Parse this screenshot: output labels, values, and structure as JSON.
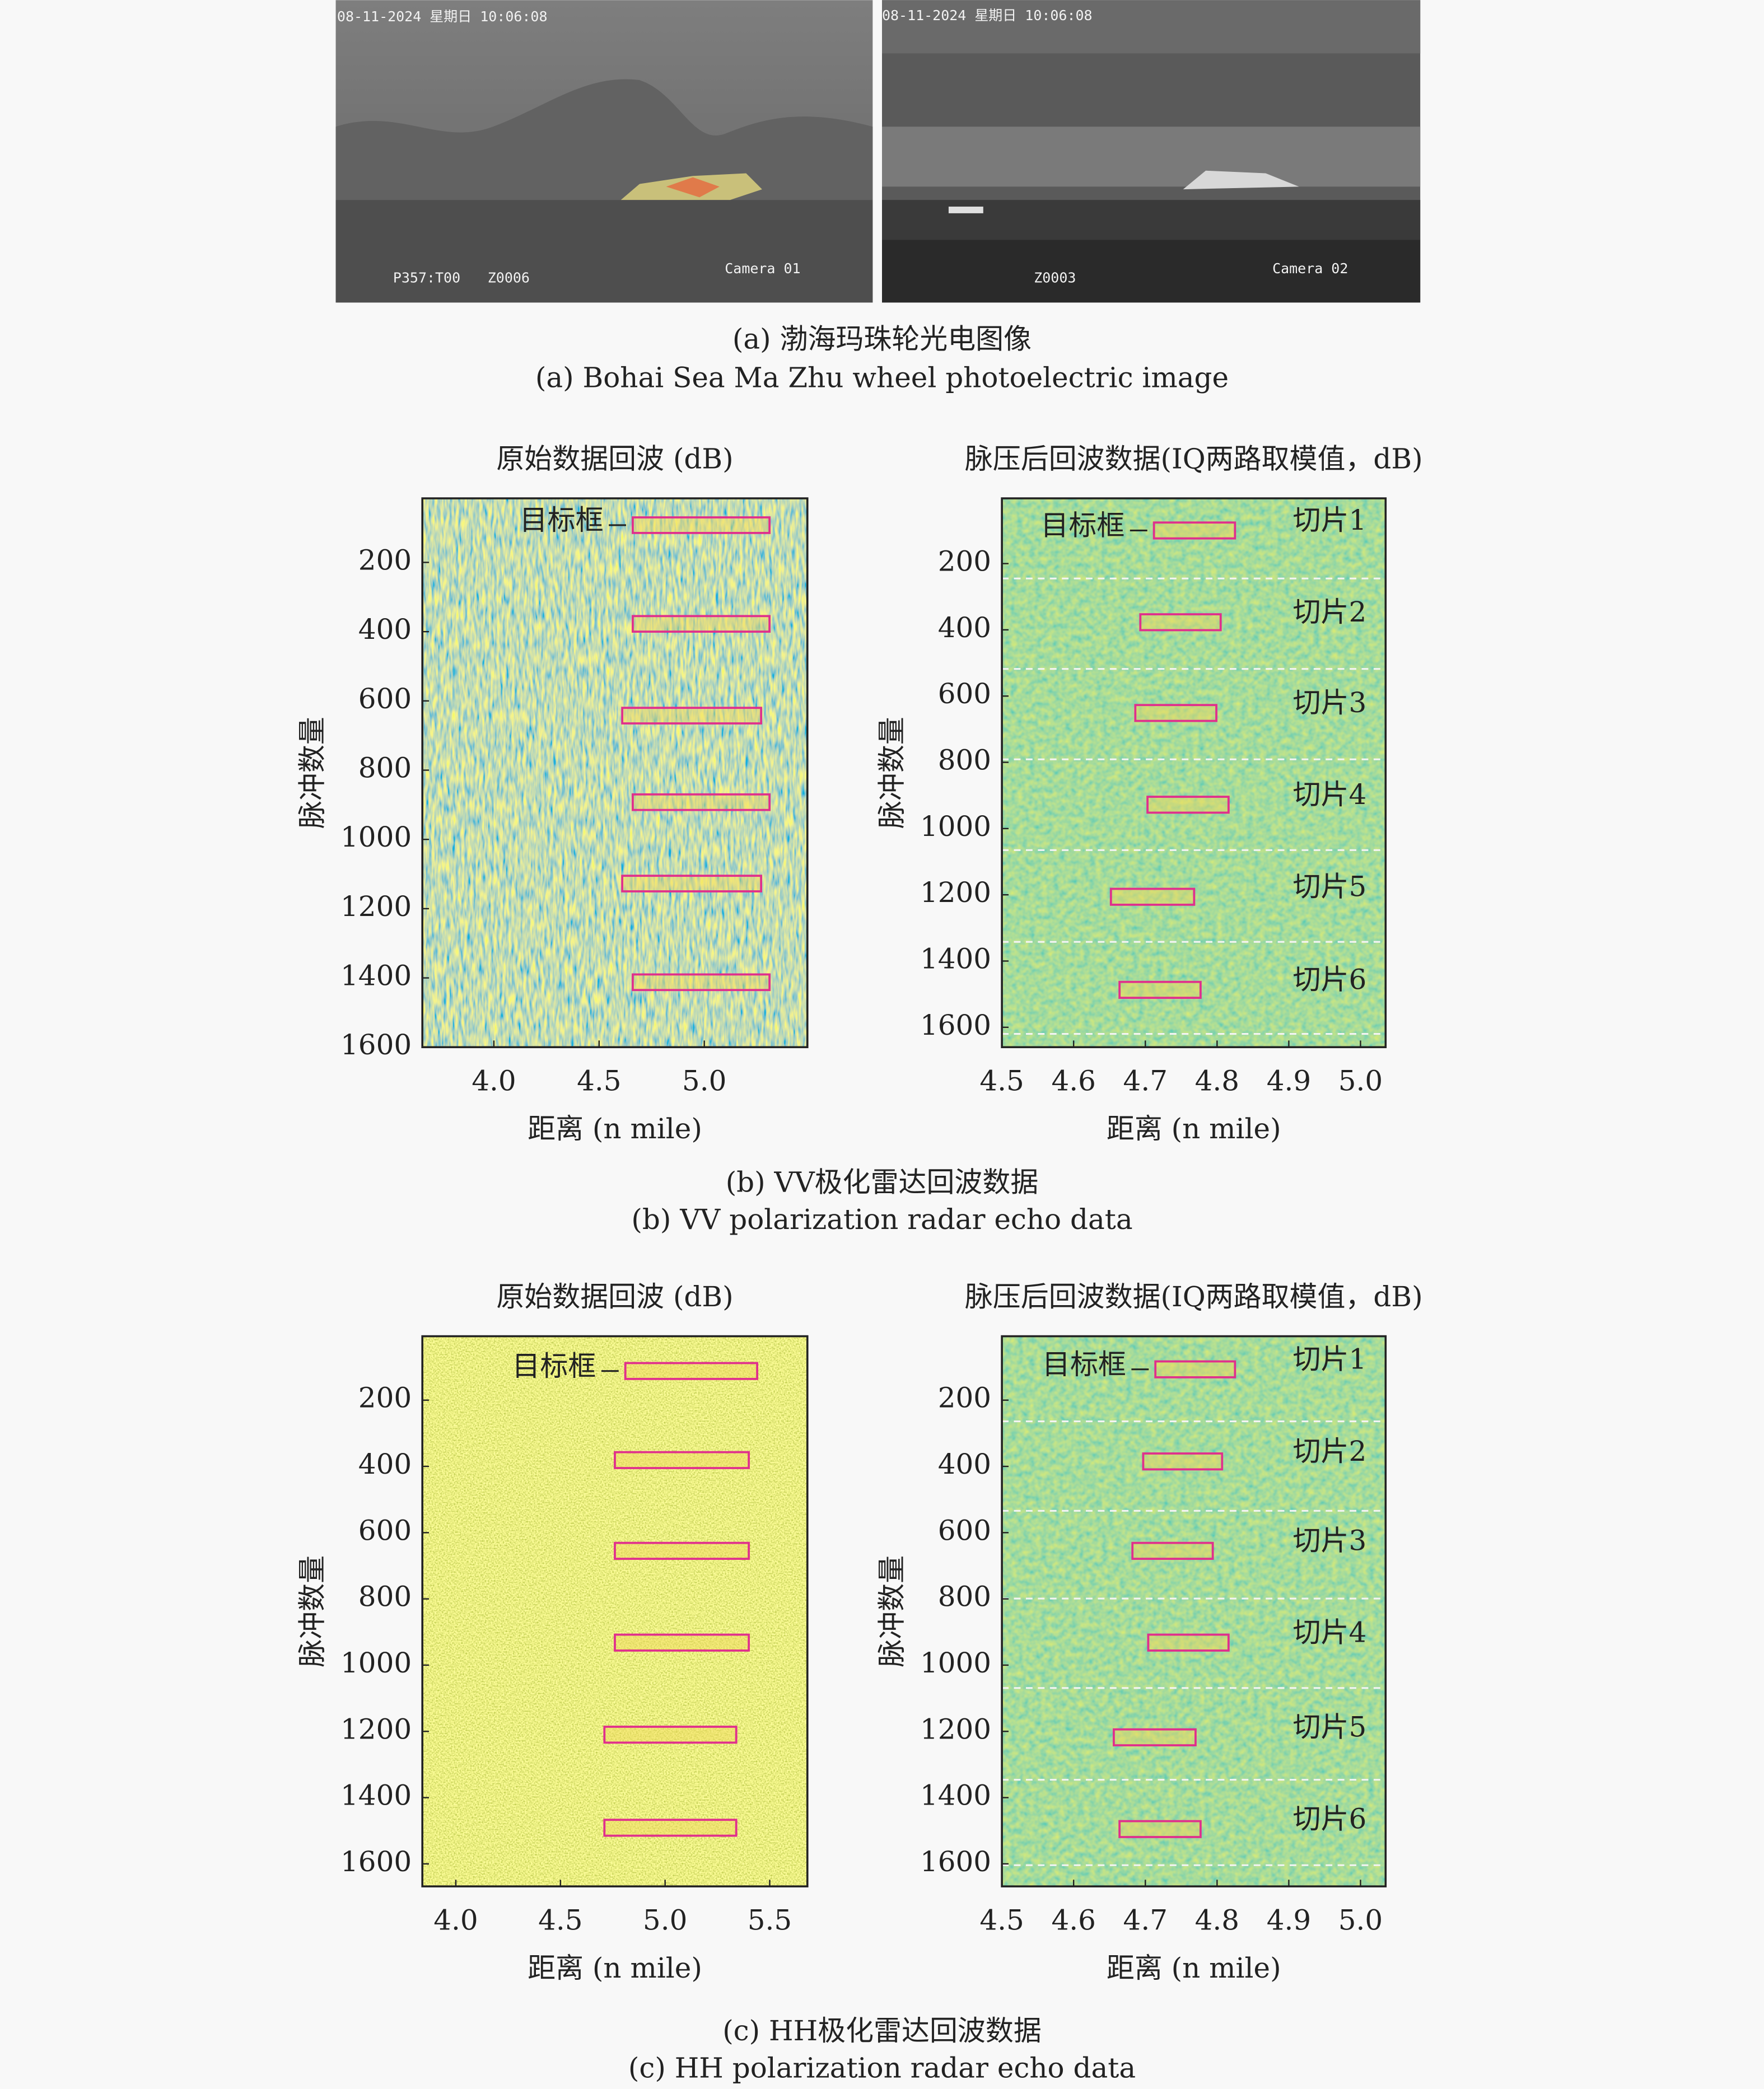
{
  "camera_images": [
    {
      "timestamp": "08-11-2024 星期日 10:06:08",
      "label": "Camera 01",
      "codes": [
        "P357:T00",
        "Z0006"
      ]
    },
    {
      "timestamp": "08-11-2024 星期日 10:06:08",
      "label": "Camera 02",
      "codes": [
        "Z0003"
      ]
    }
  ],
  "captions": {
    "a": [
      "(a) 渤海玛珠轮光电图像",
      "(a) Bohai Sea Ma Zhu wheel photoelectric image"
    ],
    "b": [
      "(b) VV极化雷达回波数据",
      "(b) VV polarization radar echo data"
    ],
    "c": [
      "(c) HH极化雷达回波数据",
      "(c) HH polarization radar echo data"
    ]
  },
  "panels": [
    {
      "title": "原始数据回波 (dB)",
      "xlabel": "距离 (n mile)",
      "ylabel": "脉冲数量",
      "xlim": [
        3.66,
        5.49
      ],
      "ylim": [
        15,
        1600
      ],
      "inverted_y": true,
      "xticks": [
        {
          "value": 4,
          "label": "4.0"
        },
        4.5,
        {
          "value": 5,
          "label": "5.0"
        }
      ],
      "yticks": [
        200,
        400,
        600,
        800,
        1000,
        1200,
        1400,
        1600
      ],
      "annotation": "目标框",
      "targets": [
        {
          "x": [
            4.66,
            5.31
          ],
          "y": [
            70,
            115
          ]
        },
        {
          "x": [
            4.66,
            5.31
          ],
          "y": [
            355,
            400
          ]
        },
        {
          "x": [
            4.61,
            5.27
          ],
          "y": [
            620,
            665
          ]
        },
        {
          "x": [
            4.66,
            5.31
          ],
          "y": [
            870,
            915
          ]
        },
        {
          "x": [
            4.61,
            5.27
          ],
          "y": [
            1105,
            1150
          ]
        },
        {
          "x": [
            4.66,
            5.31
          ],
          "y": [
            1390,
            1435
          ]
        }
      ]
    },
    {
      "title": "脉压后回波数据(IQ两路取模值，dB)",
      "xlabel": "距离 (n mile)",
      "ylabel": "脉冲数量",
      "xlim": [
        4.5,
        5.035
      ],
      "ylim": [
        3,
        1660
      ],
      "inverted_y": true,
      "xticks": [
        4.5,
        4.6,
        4.7,
        4.8,
        4.9,
        {
          "value": 5,
          "label": "5.0"
        }
      ],
      "yticks": [
        200,
        400,
        600,
        800,
        1000,
        1200,
        1400,
        1600
      ],
      "annotation": "目标框",
      "targets": [
        {
          "x": [
            4.712,
            4.825
          ],
          "y": [
            76,
            124
          ]
        },
        {
          "x": [
            4.693,
            4.805
          ],
          "y": [
            353,
            401
          ]
        },
        {
          "x": [
            4.686,
            4.799
          ],
          "y": [
            627,
            675
          ]
        },
        {
          "x": [
            4.703,
            4.816
          ],
          "y": [
            904,
            952
          ]
        },
        {
          "x": [
            4.652,
            4.768
          ],
          "y": [
            1182,
            1230
          ]
        },
        {
          "x": [
            4.664,
            4.777
          ],
          "y": [
            1463,
            1511
          ]
        }
      ],
      "slices": [
        "切片1",
        "切片2",
        "切片3",
        "切片4",
        "切片5",
        "切片6"
      ],
      "slice_bounds": [
        245,
        518,
        791,
        1065,
        1342,
        1620
      ]
    },
    {
      "title": "原始数据回波 (dB)",
      "xlabel": "距离 (n mile)",
      "ylabel": "脉冲数量",
      "xlim": [
        3.84,
        5.68
      ],
      "ylim": [
        7,
        1668
      ],
      "inverted_y": true,
      "xticks": [
        {
          "value": 4,
          "label": "4.0"
        },
        4.5,
        {
          "value": 5,
          "label": "5.0"
        },
        5.5
      ],
      "yticks": [
        200,
        400,
        600,
        800,
        1000,
        1200,
        1400,
        1600
      ],
      "annotation": "目标框",
      "targets": [
        {
          "x": [
            4.81,
            5.44
          ],
          "y": [
            88,
            136
          ]
        },
        {
          "x": [
            4.76,
            5.4
          ],
          "y": [
            357,
            405
          ]
        },
        {
          "x": [
            4.76,
            5.4
          ],
          "y": [
            631,
            679
          ]
        },
        {
          "x": [
            4.76,
            5.4
          ],
          "y": [
            908,
            956
          ]
        },
        {
          "x": [
            4.71,
            5.34
          ],
          "y": [
            1186,
            1234
          ]
        },
        {
          "x": [
            4.71,
            5.34
          ],
          "y": [
            1467,
            1515
          ]
        }
      ]
    },
    {
      "title": "脉压后回波数据(IQ两路取模值，dB)",
      "xlabel": "距离 (n mile)",
      "ylabel": "脉冲数量",
      "xlim": [
        4.5,
        5.035
      ],
      "ylim": [
        7,
        1668
      ],
      "inverted_y": true,
      "xticks": [
        4.5,
        4.6,
        4.7,
        4.8,
        4.9,
        {
          "value": 5,
          "label": "5.0"
        }
      ],
      "yticks": [
        200,
        400,
        600,
        800,
        1000,
        1200,
        1400,
        1600
      ],
      "annotation": "目标框",
      "targets": [
        {
          "x": [
            4.714,
            4.825
          ],
          "y": [
            83,
            131
          ]
        },
        {
          "x": [
            4.697,
            4.807
          ],
          "y": [
            361,
            409
          ]
        },
        {
          "x": [
            4.682,
            4.794
          ],
          "y": [
            631,
            679
          ]
        },
        {
          "x": [
            4.704,
            4.816
          ],
          "y": [
            908,
            956
          ]
        },
        {
          "x": [
            4.656,
            4.77
          ],
          "y": [
            1194,
            1242
          ]
        },
        {
          "x": [
            4.664,
            4.777
          ],
          "y": [
            1471,
            1519
          ]
        }
      ],
      "slices": [
        "切片1",
        "切片2",
        "切片3",
        "切片4",
        "切片5",
        "切片6"
      ],
      "slice_bounds": [
        264,
        534,
        799,
        1069,
        1346,
        1604
      ]
    }
  ]
}
